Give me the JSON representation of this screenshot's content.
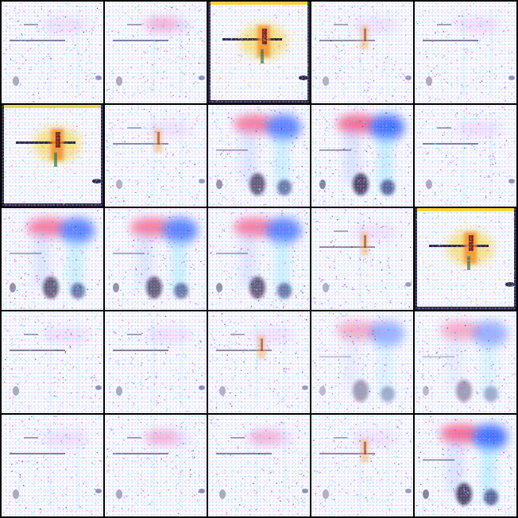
{
  "grid": {
    "rows": 5,
    "cols": 5,
    "tiles": [
      {
        "variant": "faint"
      },
      {
        "variant": "faint-pink"
      },
      {
        "variant": "figure"
      },
      {
        "variant": "faint-figure"
      },
      {
        "variant": "faint"
      },
      {
        "variant": "figure"
      },
      {
        "variant": "faint-figure"
      },
      {
        "variant": "blue-pink"
      },
      {
        "variant": "blue-pink-strong"
      },
      {
        "variant": "faint"
      },
      {
        "variant": "blue-pink"
      },
      {
        "variant": "blue-pink"
      },
      {
        "variant": "blue-pink"
      },
      {
        "variant": "faint-figure"
      },
      {
        "variant": "figure"
      },
      {
        "variant": "faint"
      },
      {
        "variant": "faint"
      },
      {
        "variant": "faint-figure"
      },
      {
        "variant": "blue-pink-light"
      },
      {
        "variant": "blue-pink-light"
      },
      {
        "variant": "faint"
      },
      {
        "variant": "faint-pink"
      },
      {
        "variant": "faint-pink"
      },
      {
        "variant": "faint-figure"
      },
      {
        "variant": "blue-pink-strong"
      }
    ]
  },
  "colors": {
    "background": "#000000",
    "tile_base": "#fdfbff",
    "pink": "#ff4f7a",
    "blue": "#3f6dff",
    "cyan": "#6fe3ff",
    "magenta": "#d66bff",
    "yellow": "#ffd21a",
    "dark": "#1a1030",
    "navy": "#1e2a6b"
  }
}
